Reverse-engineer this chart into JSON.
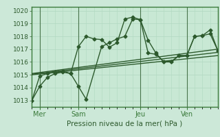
{
  "xlabel": "Pression niveau de la mer( hPa )",
  "bg_color": "#cce8d8",
  "plot_bg_color": "#c8e8d4",
  "grid_color": "#b0d8c0",
  "line_color": "#2d5a2d",
  "border_color": "#3a7a3a",
  "ylim": [
    1012.5,
    1020.3
  ],
  "xlim": [
    0,
    48
  ],
  "yticks": [
    1013,
    1014,
    1015,
    1016,
    1017,
    1018,
    1019,
    1020
  ],
  "xtick_positions": [
    2,
    12,
    28,
    40
  ],
  "xtick_labels": [
    "Mer",
    "Sam",
    "Jeu",
    "Ven"
  ],
  "vlines": [
    2,
    12,
    28,
    40
  ],
  "series": [
    {
      "x": [
        0,
        2,
        4,
        6,
        8,
        10,
        12,
        14,
        16,
        18,
        20,
        22,
        24,
        26,
        28,
        30,
        32,
        34,
        36,
        38,
        40,
        42,
        44,
        46,
        48
      ],
      "y": [
        1013.0,
        1014.1,
        1014.8,
        1015.1,
        1015.2,
        1015.1,
        1017.2,
        1018.0,
        1017.8,
        1017.75,
        1017.15,
        1017.5,
        1019.35,
        1019.5,
        1019.3,
        1017.7,
        1016.7,
        1016.0,
        1016.0,
        1016.5,
        1016.5,
        1018.0,
        1018.05,
        1018.2,
        1016.9
      ],
      "marker": "D",
      "markersize": 2.5,
      "linewidth": 1.0
    },
    {
      "x": [
        0,
        2,
        4,
        6,
        8,
        10,
        12,
        14,
        18,
        20,
        22,
        24,
        26,
        28,
        30,
        32,
        34,
        36,
        38,
        40,
        42,
        44,
        46,
        48
      ],
      "y": [
        1013.0,
        1014.9,
        1015.1,
        1015.2,
        1015.3,
        1015.1,
        1014.1,
        1013.1,
        1017.2,
        1017.5,
        1017.8,
        1018.0,
        1019.35,
        1019.3,
        1016.7,
        1016.6,
        1016.05,
        1016.05,
        1016.5,
        1016.5,
        1018.0,
        1018.05,
        1018.5,
        1016.9
      ],
      "marker": "D",
      "markersize": 2.5,
      "linewidth": 1.0
    },
    {
      "x": [
        0,
        48
      ],
      "y": [
        1015.0,
        1016.5
      ],
      "marker": null,
      "linewidth": 1.0
    },
    {
      "x": [
        0,
        48
      ],
      "y": [
        1015.05,
        1016.75
      ],
      "marker": null,
      "linewidth": 1.0
    },
    {
      "x": [
        0,
        48
      ],
      "y": [
        1015.1,
        1017.0
      ],
      "marker": null,
      "linewidth": 1.0
    }
  ]
}
